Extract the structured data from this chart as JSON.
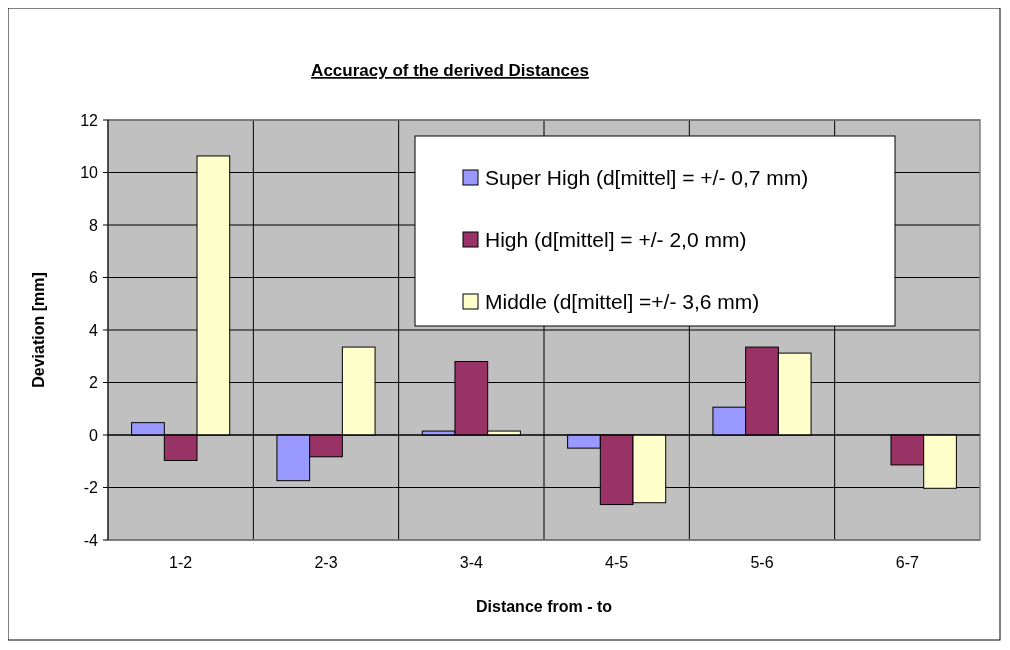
{
  "chart_data": {
    "type": "bar",
    "title": "Accuracy of the derived Distances",
    "xlabel": "Distance from - to",
    "ylabel": "Deviation [mm]",
    "categories": [
      "1-2",
      "2-3",
      "3-4",
      "4-5",
      "5-6",
      "6-7"
    ],
    "series": [
      {
        "name": "Super High (d[mittel] = +/- 0,7 mm)",
        "color": "#9999ff",
        "values": [
          0.47,
          -1.74,
          0.15,
          -0.5,
          1.06,
          null
        ]
      },
      {
        "name": "High (d[mittel] = +/- 2,0 mm)",
        "color": "#993366",
        "values": [
          -0.97,
          -0.83,
          2.8,
          -2.65,
          3.35,
          -1.14
        ]
      },
      {
        "name": "Middle (d[mittel] =+/- 3,6 mm)",
        "color": "#ffffcc",
        "values": [
          10.63,
          3.35,
          0.15,
          -2.58,
          3.12,
          -2.03
        ]
      }
    ],
    "ylim": [
      -4,
      12
    ],
    "yticks": [
      -4,
      -2,
      0,
      2,
      4,
      6,
      8,
      10,
      12
    ],
    "grid": true,
    "legend": "top right"
  }
}
